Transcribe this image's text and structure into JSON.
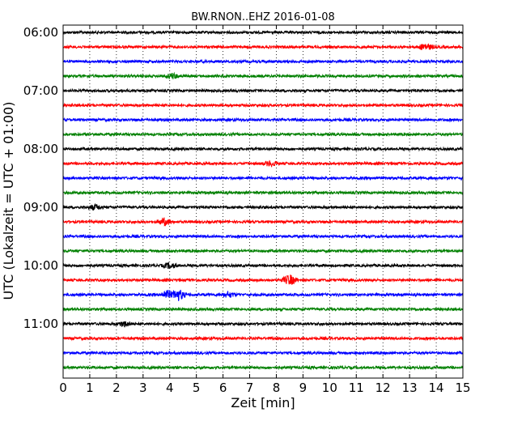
{
  "chart_data": {
    "type": "line",
    "title": "BW.RNON..EHZ 2016-01-08",
    "xlabel": "Zeit  [min]",
    "ylabel": "UTC (Lokalzeit = UTC + 01:00)",
    "xlim": [
      0,
      15
    ],
    "x_ticks": [
      "0",
      "1",
      "2",
      "3",
      "4",
      "5",
      "6",
      "7",
      "8",
      "9",
      "10",
      "11",
      "12",
      "13",
      "14",
      "15"
    ],
    "y_ticks": [
      "06:00",
      "07:00",
      "08:00",
      "09:00",
      "10:00",
      "11:00"
    ],
    "grid": "vertical dotted",
    "trace_colors": [
      "#000000",
      "#ff0000",
      "#0000ff",
      "#008000"
    ],
    "trace_count": 24,
    "trace_interval_min": 15,
    "first_trace_start": "06:00",
    "events": [
      {
        "trace": 1,
        "minute": 13.6,
        "amplitude": 4
      },
      {
        "trace": 3,
        "minute": 4.1,
        "amplitude": 3
      },
      {
        "trace": 9,
        "minute": 7.8,
        "amplitude": 3
      },
      {
        "trace": 12,
        "minute": 1.2,
        "amplitude": 3
      },
      {
        "trace": 13,
        "minute": 3.8,
        "amplitude": 4
      },
      {
        "trace": 16,
        "minute": 4.0,
        "amplitude": 3
      },
      {
        "trace": 17,
        "minute": 8.5,
        "amplitude": 6
      },
      {
        "trace": 18,
        "minute": 3.9,
        "amplitude": 5
      },
      {
        "trace": 18,
        "minute": 4.3,
        "amplitude": 7
      },
      {
        "trace": 18,
        "minute": 6.2,
        "amplitude": 3
      },
      {
        "trace": 20,
        "minute": 2.3,
        "amplitude": 3
      }
    ]
  }
}
